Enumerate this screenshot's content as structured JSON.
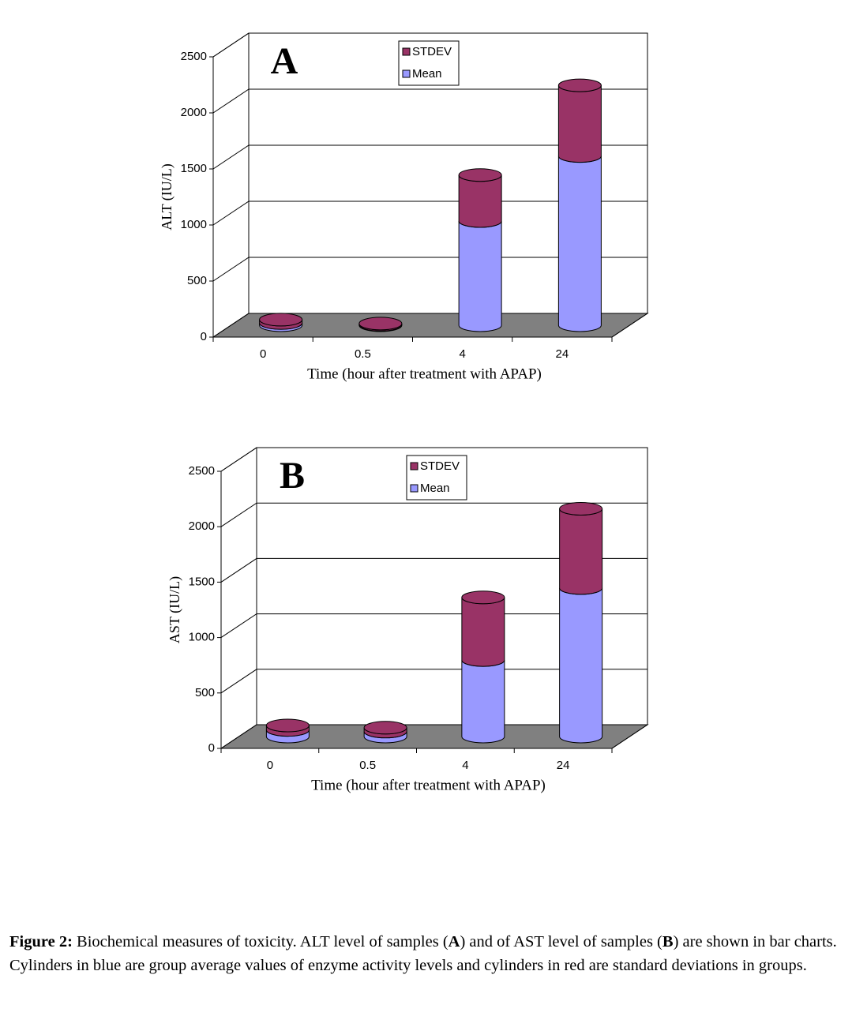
{
  "chart_data": [
    {
      "type": "bar",
      "stacked": true,
      "panel_label": "A",
      "y_label": "ALT (IU/L)",
      "x_label": "Time (hour after treatment with APAP)",
      "categories": [
        "0",
        "0.5",
        "4",
        "24"
      ],
      "series": [
        {
          "name": "Mean",
          "color": "#9999ff",
          "values": [
            20,
            5,
            930,
            1510
          ]
        },
        {
          "name": "STDEV",
          "color": "#993366",
          "values": [
            30,
            10,
            410,
            630
          ]
        }
      ],
      "ylim": [
        0,
        2500
      ],
      "yticks": [
        0,
        500,
        1000,
        1500,
        2000,
        2500
      ],
      "grid": true
    },
    {
      "type": "bar",
      "stacked": true,
      "panel_label": "B",
      "y_label": "AST (IU/L)",
      "x_label": "Time (hour after treatment with APAP)",
      "categories": [
        "0",
        "0.5",
        "4",
        "24"
      ],
      "series": [
        {
          "name": "Mean",
          "color": "#9999ff",
          "values": [
            60,
            45,
            690,
            1340
          ]
        },
        {
          "name": "STDEV",
          "color": "#993366",
          "values": [
            40,
            35,
            565,
            715
          ]
        }
      ],
      "ylim": [
        0,
        2500
      ],
      "yticks": [
        0,
        500,
        1000,
        1500,
        2000,
        2500
      ],
      "grid": true
    }
  ],
  "caption": [
    {
      "text": "Figure 2:",
      "bold": true
    },
    {
      "text": " Biochemical measures of toxicity.  ALT level of samples (",
      "bold": false
    },
    {
      "text": "A",
      "bold": true
    },
    {
      "text": ") and of AST level of samples (",
      "bold": false
    },
    {
      "text": "B",
      "bold": true
    },
    {
      "text": ") are shown in bar charts. Cylinders in blue are group average values of enzyme activity levels and cylinders in red are standard deviations in groups.",
      "bold": false
    }
  ]
}
